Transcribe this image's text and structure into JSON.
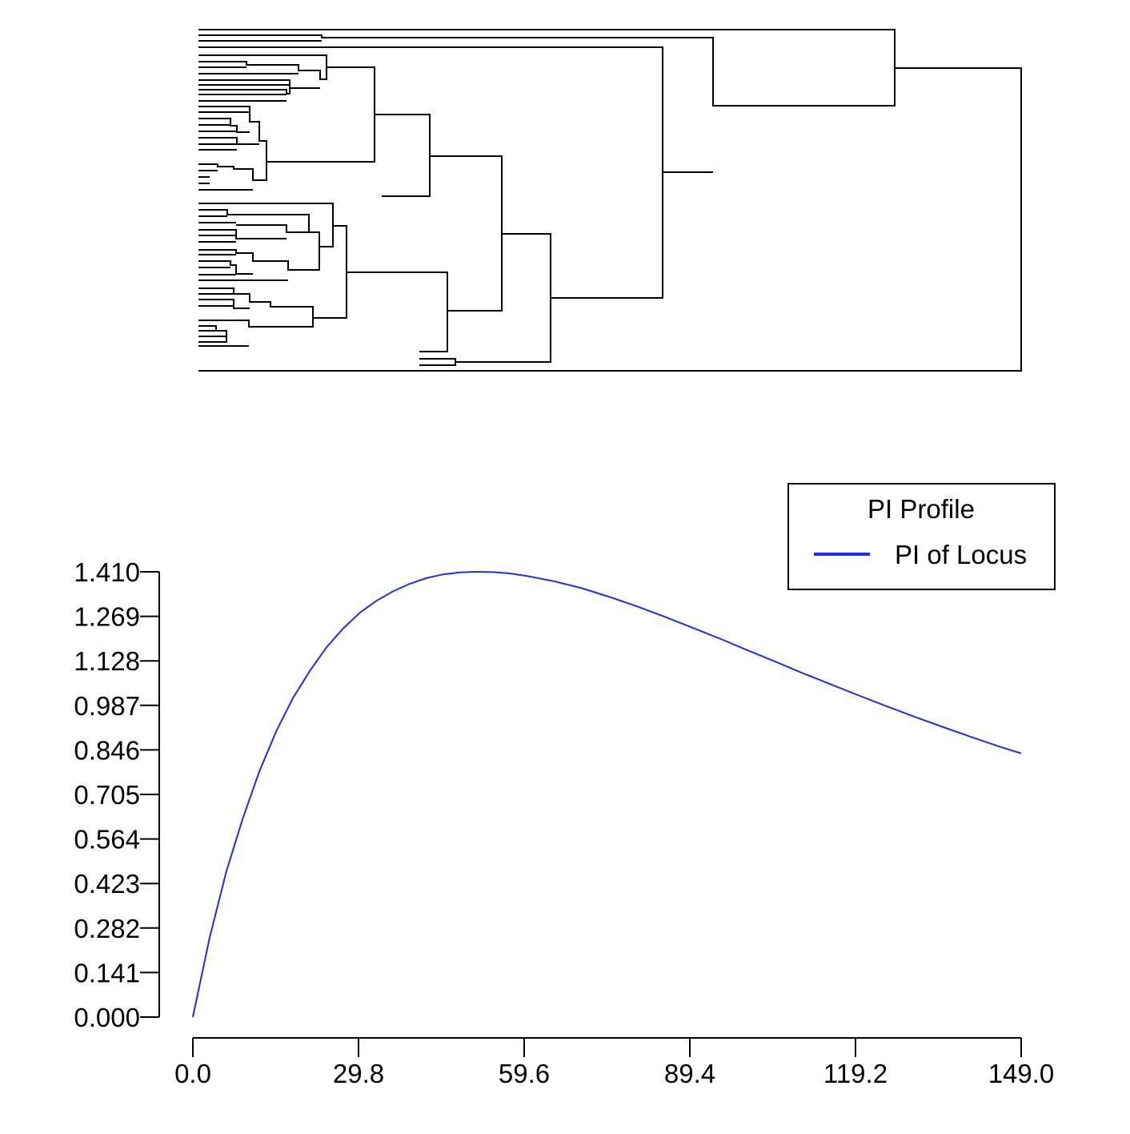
{
  "dendrogram": {
    "leaf_count": 64
  },
  "chart_data": {
    "type": "line",
    "title": "",
    "xlabel": "",
    "ylabel": "",
    "xlim": [
      0,
      149.0
    ],
    "ylim": [
      0,
      1.41
    ],
    "x_ticks": [
      "0.0",
      "29.8",
      "59.6",
      "89.4",
      "119.2",
      "149.0"
    ],
    "y_ticks": [
      "0.000",
      "0.141",
      "0.282",
      "0.423",
      "0.564",
      "0.705",
      "0.846",
      "0.987",
      "1.128",
      "1.269",
      "1.410"
    ],
    "grid": false,
    "legend": {
      "title": "PI Profile",
      "placement": "top-right",
      "entries": [
        "PI of Locus"
      ]
    },
    "series": [
      {
        "name": "PI of Locus",
        "color": "#1a2bff",
        "x": [
          0,
          3,
          6,
          9,
          12,
          15,
          18,
          21,
          24,
          27,
          30,
          33,
          36,
          39,
          42,
          45,
          48,
          51,
          54,
          57,
          60,
          65,
          70,
          75,
          80,
          85,
          90,
          95,
          100,
          105,
          110,
          115,
          120,
          125,
          130,
          135,
          140,
          145,
          149
        ],
        "y": [
          0.0,
          0.25,
          0.46,
          0.63,
          0.78,
          0.905,
          1.01,
          1.095,
          1.17,
          1.23,
          1.28,
          1.318,
          1.348,
          1.372,
          1.39,
          1.402,
          1.408,
          1.41,
          1.409,
          1.405,
          1.397,
          1.38,
          1.358,
          1.33,
          1.3,
          1.267,
          1.232,
          1.197,
          1.16,
          1.124,
          1.087,
          1.052,
          1.017,
          0.983,
          0.95,
          0.918,
          0.887,
          0.857,
          0.835
        ]
      }
    ]
  }
}
